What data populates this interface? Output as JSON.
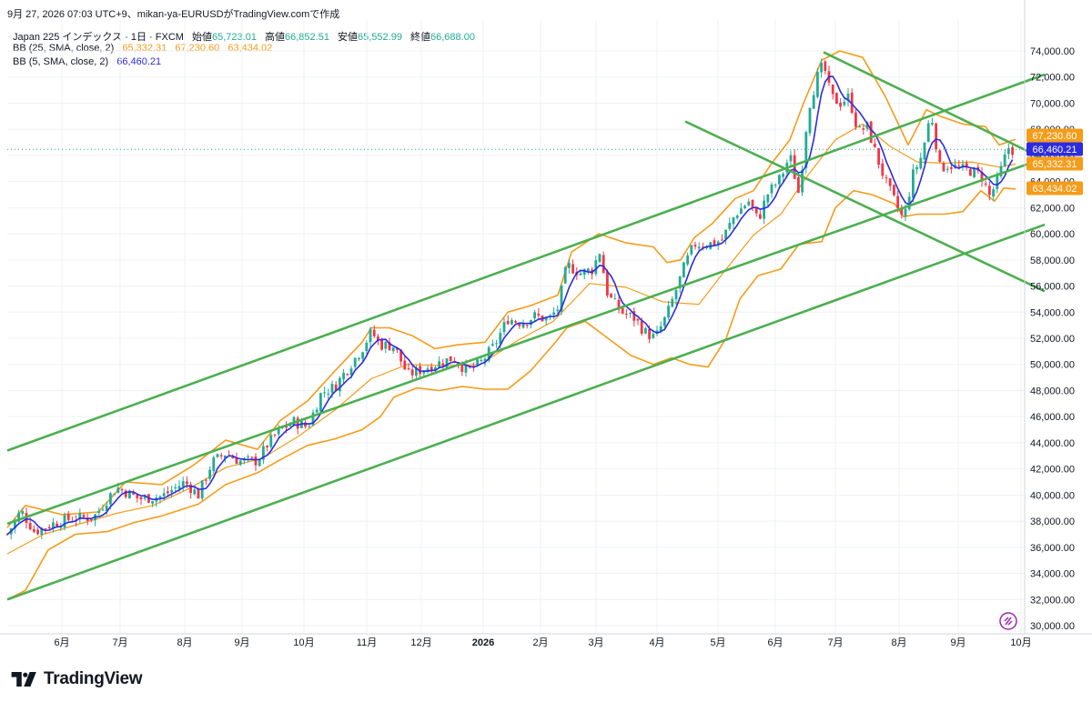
{
  "header": {
    "caption": "9月 27, 2026 07:03 UTC+9、mikan-ya-EURUSDがTradingView.comで作成"
  },
  "legend": {
    "symbol": "Japan 225 インデックス · 1日 · FXCM",
    "open_label": "始値",
    "open": "65,723.01",
    "high_label": "高値",
    "high": "66,852.51",
    "low_label": "安値",
    "low": "65,552.99",
    "close_label": "終値",
    "close": "66,688.00",
    "bb25_label": "BB (25, SMA, close, 2)",
    "bb25_basis": "65,332.31",
    "bb25_upper": "67,230.60",
    "bb25_lower": "63,434.02",
    "bb5_label": "BB (5, SMA, close, 2)",
    "bb5_basis": "66,460.21"
  },
  "colors": {
    "up_candle": "#22ab94",
    "down_candle": "#f23645",
    "bb25": "#f59c1a",
    "bb5": "#2d2be1",
    "trend_lines": "#4caf50",
    "grid": "#eef1f5",
    "axis_text": "#131722"
  },
  "footer": {
    "brand": "TradingView",
    "logo_icon": "tradingview-logo-icon"
  },
  "chart_data": {
    "type": "candlestick",
    "title": "Japan 225 インデックス · 1日 · FXCM",
    "x_ticks": [
      "6月",
      "7月",
      "8月",
      "9月",
      "10月",
      "11月",
      "12月",
      "2026",
      "2月",
      "3月",
      "4月",
      "5月",
      "6月",
      "7月",
      "8月",
      "9月",
      "10月"
    ],
    "y_ticks": [
      "30,000.00",
      "32,000.00",
      "34,000.00",
      "36,000.00",
      "38,000.00",
      "40,000.00",
      "42,000.00",
      "44,000.00",
      "46,000.00",
      "48,000.00",
      "50,000.00",
      "52,000.00",
      "54,000.00",
      "56,000.00",
      "58,000.00",
      "60,000.00",
      "62,000.00",
      "64,000.00",
      "66,000.00",
      "68,000.00",
      "70,000.00",
      "72,000.00",
      "74,000.00"
    ],
    "ylim": [
      30000,
      75000
    ],
    "price_labels": [
      {
        "text": "67,230.60",
        "value": 67230.6,
        "color": "#f59c1a"
      },
      {
        "text": "66,460.21",
        "value": 66460.21,
        "color": "#2d2be1"
      },
      {
        "text": "65,332.31",
        "value": 65332.31,
        "color": "#f59c1a"
      },
      {
        "text": "63,434.02",
        "value": 63434.02,
        "color": "#f59c1a"
      }
    ],
    "close_path": [
      [
        0,
        37000
      ],
      [
        15,
        38800
      ],
      [
        30,
        37200
      ],
      [
        50,
        37800
      ],
      [
        70,
        38200
      ],
      [
        95,
        38300
      ],
      [
        120,
        40600
      ],
      [
        145,
        39700
      ],
      [
        170,
        39900
      ],
      [
        195,
        41000
      ],
      [
        210,
        40000
      ],
      [
        225,
        42500
      ],
      [
        240,
        43200
      ],
      [
        255,
        42600
      ],
      [
        275,
        42600
      ],
      [
        285,
        43800
      ],
      [
        300,
        45000
      ],
      [
        315,
        45600
      ],
      [
        330,
        45200
      ],
      [
        345,
        47800
      ],
      [
        360,
        48300
      ],
      [
        375,
        49800
      ],
      [
        390,
        51200
      ],
      [
        400,
        52500
      ],
      [
        410,
        51500
      ],
      [
        425,
        51400
      ],
      [
        440,
        49200
      ],
      [
        455,
        49600
      ],
      [
        470,
        50000
      ],
      [
        490,
        50500
      ],
      [
        505,
        49500
      ],
      [
        520,
        50100
      ],
      [
        535,
        51400
      ],
      [
        550,
        53500
      ],
      [
        565,
        53200
      ],
      [
        580,
        53700
      ],
      [
        595,
        53400
      ],
      [
        605,
        54300
      ],
      [
        615,
        57600
      ],
      [
        630,
        57000
      ],
      [
        645,
        57300
      ],
      [
        650,
        59000
      ],
      [
        660,
        55300
      ],
      [
        675,
        54000
      ],
      [
        690,
        53500
      ],
      [
        700,
        52500
      ],
      [
        712,
        52000
      ],
      [
        725,
        53800
      ],
      [
        735,
        55700
      ],
      [
        745,
        57700
      ],
      [
        755,
        59200
      ],
      [
        770,
        59200
      ],
      [
        785,
        59500
      ],
      [
        800,
        61500
      ],
      [
        815,
        62500
      ],
      [
        825,
        61000
      ],
      [
        835,
        63000
      ],
      [
        850,
        64300
      ],
      [
        860,
        66000
      ],
      [
        870,
        63000
      ],
      [
        880,
        69500
      ],
      [
        890,
        72000
      ],
      [
        897,
        73000
      ],
      [
        905,
        70500
      ],
      [
        915,
        70000
      ],
      [
        925,
        70500
      ],
      [
        935,
        67800
      ],
      [
        945,
        68200
      ],
      [
        955,
        66000
      ],
      [
        965,
        64000
      ],
      [
        975,
        62500
      ],
      [
        985,
        61000
      ],
      [
        995,
        64500
      ],
      [
        1005,
        66000
      ],
      [
        1015,
        69300
      ],
      [
        1025,
        65000
      ],
      [
        1035,
        65300
      ],
      [
        1045,
        65000
      ],
      [
        1060,
        64800
      ],
      [
        1070,
        64500
      ],
      [
        1080,
        62800
      ],
      [
        1090,
        64500
      ],
      [
        1100,
        66600
      ],
      [
        1108,
        66300
      ]
    ],
    "bb25_upper": [
      [
        0,
        37500
      ],
      [
        20,
        39200
      ],
      [
        60,
        38500
      ],
      [
        100,
        38700
      ],
      [
        130,
        41000
      ],
      [
        170,
        40800
      ],
      [
        205,
        42300
      ],
      [
        240,
        44200
      ],
      [
        275,
        43500
      ],
      [
        300,
        45700
      ],
      [
        330,
        47200
      ],
      [
        360,
        49500
      ],
      [
        390,
        51700
      ],
      [
        400,
        52800
      ],
      [
        420,
        52800
      ],
      [
        445,
        52200
      ],
      [
        470,
        51200
      ],
      [
        495,
        51500
      ],
      [
        525,
        51700
      ],
      [
        550,
        54000
      ],
      [
        575,
        54500
      ],
      [
        605,
        55300
      ],
      [
        620,
        58600
      ],
      [
        650,
        60000
      ],
      [
        680,
        59300
      ],
      [
        710,
        59000
      ],
      [
        725,
        57800
      ],
      [
        740,
        58000
      ],
      [
        755,
        59700
      ],
      [
        775,
        60800
      ],
      [
        800,
        62700
      ],
      [
        820,
        63300
      ],
      [
        840,
        65400
      ],
      [
        860,
        67200
      ],
      [
        875,
        70000
      ],
      [
        895,
        73300
      ],
      [
        915,
        74000
      ],
      [
        940,
        73500
      ],
      [
        965,
        70500
      ],
      [
        990,
        66800
      ],
      [
        1010,
        69500
      ],
      [
        1025,
        69000
      ],
      [
        1050,
        68400
      ],
      [
        1075,
        68200
      ],
      [
        1090,
        66800
      ],
      [
        1108,
        67230
      ]
    ],
    "bb25_lower": [
      [
        0,
        32000
      ],
      [
        20,
        32700
      ],
      [
        45,
        35800
      ],
      [
        75,
        37000
      ],
      [
        110,
        37200
      ],
      [
        140,
        37900
      ],
      [
        170,
        38400
      ],
      [
        210,
        39300
      ],
      [
        240,
        40800
      ],
      [
        275,
        41700
      ],
      [
        300,
        42700
      ],
      [
        330,
        43800
      ],
      [
        360,
        44300
      ],
      [
        390,
        45000
      ],
      [
        410,
        46000
      ],
      [
        425,
        47500
      ],
      [
        450,
        48200
      ],
      [
        475,
        48000
      ],
      [
        500,
        48300
      ],
      [
        525,
        48100
      ],
      [
        550,
        48100
      ],
      [
        575,
        49500
      ],
      [
        600,
        51500
      ],
      [
        615,
        52800
      ],
      [
        635,
        53300
      ],
      [
        660,
        52000
      ],
      [
        685,
        50700
      ],
      [
        710,
        50000
      ],
      [
        730,
        50500
      ],
      [
        750,
        50000
      ],
      [
        770,
        49800
      ],
      [
        790,
        52000
      ],
      [
        805,
        55000
      ],
      [
        825,
        56800
      ],
      [
        850,
        57300
      ],
      [
        870,
        59200
      ],
      [
        895,
        59400
      ],
      [
        910,
        62000
      ],
      [
        930,
        63300
      ],
      [
        950,
        63000
      ],
      [
        975,
        62300
      ],
      [
        985,
        61300
      ],
      [
        1000,
        61500
      ],
      [
        1030,
        61500
      ],
      [
        1050,
        61700
      ],
      [
        1070,
        63300
      ],
      [
        1085,
        62500
      ],
      [
        1095,
        63500
      ],
      [
        1108,
        63434
      ]
    ],
    "bb25_basis": [
      [
        0,
        35500
      ],
      [
        40,
        37000
      ],
      [
        80,
        37800
      ],
      [
        120,
        38600
      ],
      [
        160,
        39200
      ],
      [
        200,
        40500
      ],
      [
        240,
        42100
      ],
      [
        280,
        42800
      ],
      [
        320,
        44500
      ],
      [
        360,
        46500
      ],
      [
        400,
        48900
      ],
      [
        440,
        50000
      ],
      [
        480,
        49900
      ],
      [
        520,
        50000
      ],
      [
        560,
        51800
      ],
      [
        600,
        53300
      ],
      [
        640,
        56200
      ],
      [
        680,
        55900
      ],
      [
        720,
        54800
      ],
      [
        760,
        54600
      ],
      [
        790,
        57300
      ],
      [
        820,
        59900
      ],
      [
        850,
        61500
      ],
      [
        880,
        64500
      ],
      [
        910,
        67200
      ],
      [
        940,
        68400
      ],
      [
        970,
        66700
      ],
      [
        1000,
        65500
      ],
      [
        1030,
        65400
      ],
      [
        1060,
        65500
      ],
      [
        1090,
        65100
      ],
      [
        1108,
        65332
      ]
    ],
    "trend_lines": [
      {
        "x1": 0,
        "y1": 43400,
        "x2": 1140,
        "y2": 72200
      },
      {
        "x1": 0,
        "y1": 37800,
        "x2": 1140,
        "y2": 65800
      },
      {
        "x1": 0,
        "y1": 32000,
        "x2": 1140,
        "y2": 60700
      },
      {
        "x1": 897,
        "y1": 73900,
        "x2": 1140,
        "y2": 65700
      },
      {
        "x1": 745,
        "y1": 68600,
        "x2": 1140,
        "y2": 55600
      }
    ]
  }
}
